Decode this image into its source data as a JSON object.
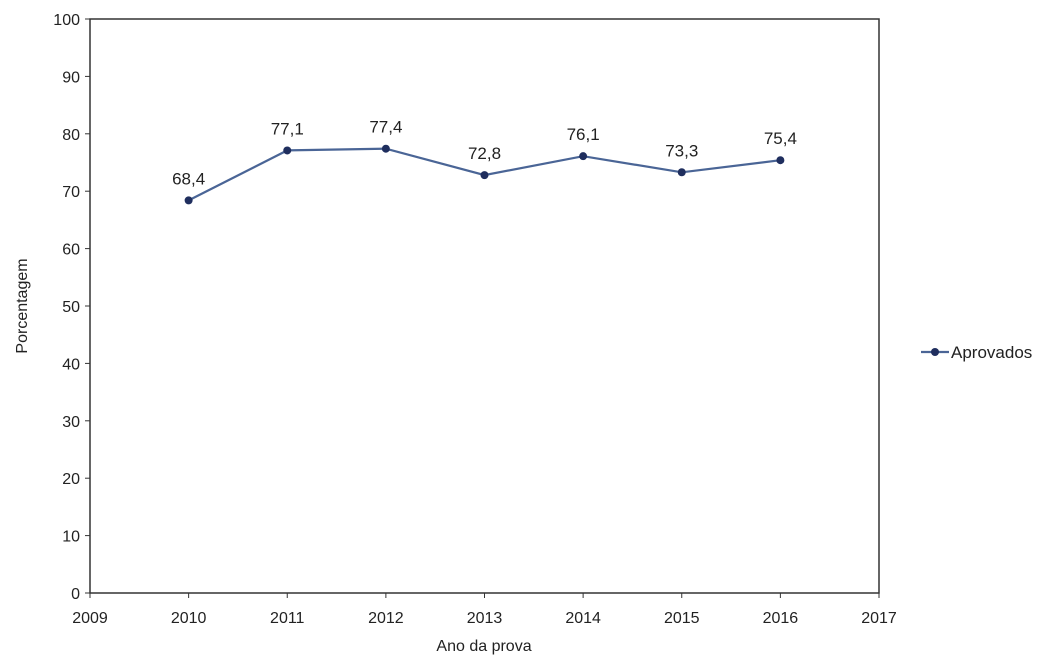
{
  "chart_data": {
    "type": "line",
    "title": "",
    "xlabel": "Ano da prova",
    "ylabel": "Porcentagem",
    "xlim": [
      2009,
      2017
    ],
    "ylim": [
      0,
      100
    ],
    "x_ticks": [
      2009,
      2010,
      2011,
      2012,
      2013,
      2014,
      2015,
      2016,
      2017
    ],
    "y_ticks": [
      0,
      10,
      20,
      30,
      40,
      50,
      60,
      70,
      80,
      90,
      100
    ],
    "grid": false,
    "legend_position": "right",
    "series": [
      {
        "name": "Aprovados",
        "color": "#4a6596",
        "marker_color": "#1f2e5e",
        "x": [
          2010,
          2011,
          2012,
          2013,
          2014,
          2015,
          2016
        ],
        "y": [
          68.4,
          77.1,
          77.4,
          72.8,
          76.1,
          73.3,
          75.4
        ],
        "labels": [
          "68,4",
          "77,1",
          "77,4",
          "72,8",
          "76,1",
          "73,3",
          "75,4"
        ]
      }
    ]
  }
}
